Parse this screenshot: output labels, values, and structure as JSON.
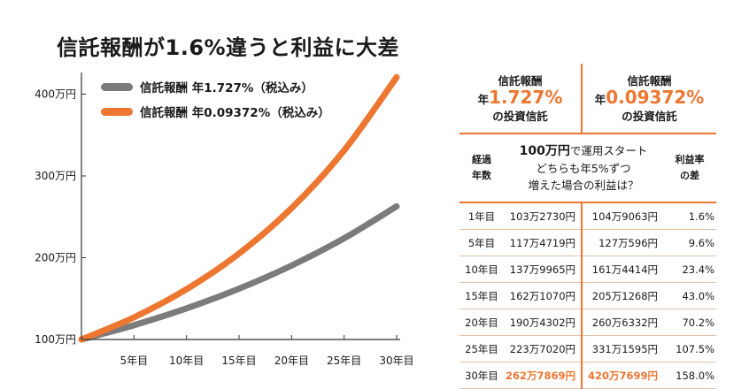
{
  "title": "信託報酬が1.6%違うと利益に大差",
  "chart_data": {
    "type": "line",
    "x": [
      0,
      5,
      10,
      15,
      20,
      25,
      30
    ],
    "xticks": [
      5,
      10,
      15,
      20,
      25,
      30
    ],
    "xtick_labels": [
      "5年目",
      "10年目",
      "15年目",
      "20年目",
      "25年目",
      "30年目"
    ],
    "yticks": [
      100,
      200,
      300,
      400
    ],
    "ytick_labels": [
      "100万円",
      "200万円",
      "300万円",
      "400万円"
    ],
    "ylim": [
      100,
      420
    ],
    "xlim": [
      0,
      30
    ],
    "legend_position": "top-left",
    "series": [
      {
        "name": "信託報酬 年1.727%（税込み）",
        "color": "#7b7b7b",
        "values": [
          100,
          117.4719,
          137.9965,
          162.107,
          190.4302,
          223.702,
          262.7869
        ]
      },
      {
        "name": "信託報酬 年0.09372%（税込み）",
        "color": "#ed7631",
        "values": [
          100,
          127.0596,
          161.4414,
          205.1268,
          260.6332,
          331.1595,
          420.7699
        ]
      }
    ]
  },
  "table": {
    "col1_header": {
      "line1": "信託報酬",
      "prefix": "年",
      "rate": "1.727%",
      "line3": "の投資信託"
    },
    "col2_header": {
      "line1": "信託報酬",
      "prefix": "年",
      "rate": "0.09372%",
      "line3": "の投資信託"
    },
    "sub_left": [
      "経過",
      "年数"
    ],
    "sub_desc": {
      "highlight": "100万円",
      "line1_rest": "で運用スタート",
      "line2": "どちらも年5%ずつ",
      "line3": "増えた場合の利益は？"
    },
    "sub_right": [
      "利益率",
      "の差"
    ],
    "rows": [
      {
        "year": "1年目",
        "v1": "103万2730円",
        "v2": "104万9063円",
        "diff": "1.6%"
      },
      {
        "year": "5年目",
        "v1": "117万4719円",
        "v2": "127万596円",
        "diff": "9.6%"
      },
      {
        "year": "10年目",
        "v1": "137万9965円",
        "v2": "161万4414円",
        "diff": "23.4%"
      },
      {
        "year": "15年目",
        "v1": "162万1070円",
        "v2": "205万1268円",
        "diff": "43.0%"
      },
      {
        "year": "20年目",
        "v1": "190万4302円",
        "v2": "260万6332円",
        "diff": "70.2%"
      },
      {
        "year": "25年目",
        "v1": "223万7020円",
        "v2": "331万1595円",
        "diff": "107.5%"
      },
      {
        "year": "30年目",
        "v1": "262万7869円",
        "v2": "420万7699円",
        "diff": "158.0%"
      }
    ]
  }
}
